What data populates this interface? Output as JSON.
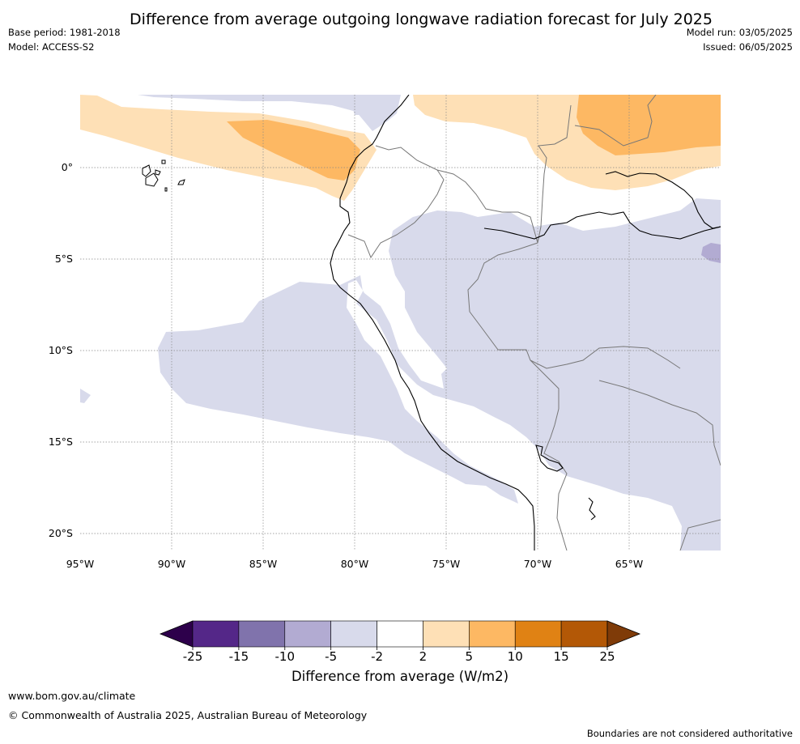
{
  "title": "Difference from average outgoing longwave radiation forecast for July 2025",
  "meta": {
    "base_period": "Base period: 1981-2018",
    "model": "Model: ACCESS-S2",
    "model_run": "Model run: 03/05/2025",
    "issued": "Issued: 06/05/2025"
  },
  "map": {
    "lat_labels": [
      "0°",
      "5°S",
      "10°S",
      "15°S",
      "20°S"
    ],
    "lon_labels": [
      "95°W",
      "90°W",
      "85°W",
      "80°W",
      "75°W",
      "70°W",
      "65°W"
    ],
    "colors": {
      "pos_2_5": "#fee0b6",
      "pos_5_10": "#fdb863",
      "neg_2_5": "#d8daeb",
      "neg_5_10": "#b2abd2",
      "coast": "#000000",
      "border": "#777777",
      "grid": "#888888"
    }
  },
  "colorbar": {
    "ticks": [
      "-25",
      "-15",
      "-10",
      "-5",
      "-2",
      "2",
      "5",
      "10",
      "15",
      "25"
    ],
    "colors": [
      "#2d004b",
      "#542788",
      "#8073ac",
      "#b2abd2",
      "#d8daeb",
      "#ffffff",
      "#fee0b6",
      "#fdb863",
      "#e08214",
      "#b35806",
      "#7f3b08"
    ],
    "label": "Difference from average (W/m2)"
  },
  "footer": {
    "url": "www.bom.gov.au/climate",
    "copyright": "© Commonwealth of Australia 2025, Australian Bureau of Meteorology",
    "note": "Boundaries are not considered authoritative"
  }
}
